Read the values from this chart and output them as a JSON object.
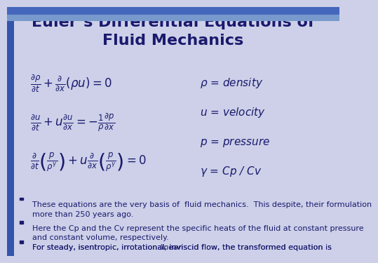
{
  "title_line1": "Euler’s Differential Equations of",
  "title_line2": "Fluid Mechanics",
  "bg_color": "#cdd0e8",
  "title_color": "#1a1a6e",
  "eq_color": "#1a1a6e",
  "label_color": "#1a1a6e",
  "bullet_color": "#1a1a6e",
  "eq1": "$\\frac{\\partial \\rho}{\\partial t} + \\frac{\\partial}{\\partial x}(\\rho u) = 0$",
  "eq2": "$\\frac{\\partial u}{\\partial t} + u\\frac{\\partial u}{\\partial x} = -\\frac{1}{\\rho}\\frac{\\partial p}{\\partial x}$",
  "eq3": "$\\frac{\\partial}{\\partial t}\\left(\\frac{p}{\\rho^\\gamma}\\right) + u\\frac{\\partial}{\\partial x}\\left(\\frac{p}{\\rho^\\gamma}\\right) = 0$",
  "label1": "$\\rho$ = density",
  "label2": "$u$ = velocity",
  "label3": "$p$ = pressure",
  "label4": "$\\gamma$ = Cp / Cv",
  "bullet1": "These equations are the very basis of  fluid mechanics.  This despite, their formulation\nmore than 250 years ago.",
  "bullet2": "Here the Cp and the Cv represent the specific heats of the fluid at constant pressure\nand constant volume, respectively.",
  "bullet3_plain": "For steady, isentropic, irrotational, inviscid flow, the transformed equation is ",
  "bullet3_italic": "linear",
  "title_fontsize": 16,
  "eq_fontsize": 12,
  "label_fontsize": 11,
  "bullet_fontsize": 8.0,
  "header_top_color": "#4466bb",
  "header_bot_color": "#7799cc",
  "left_stripe_color": "#3355aa"
}
